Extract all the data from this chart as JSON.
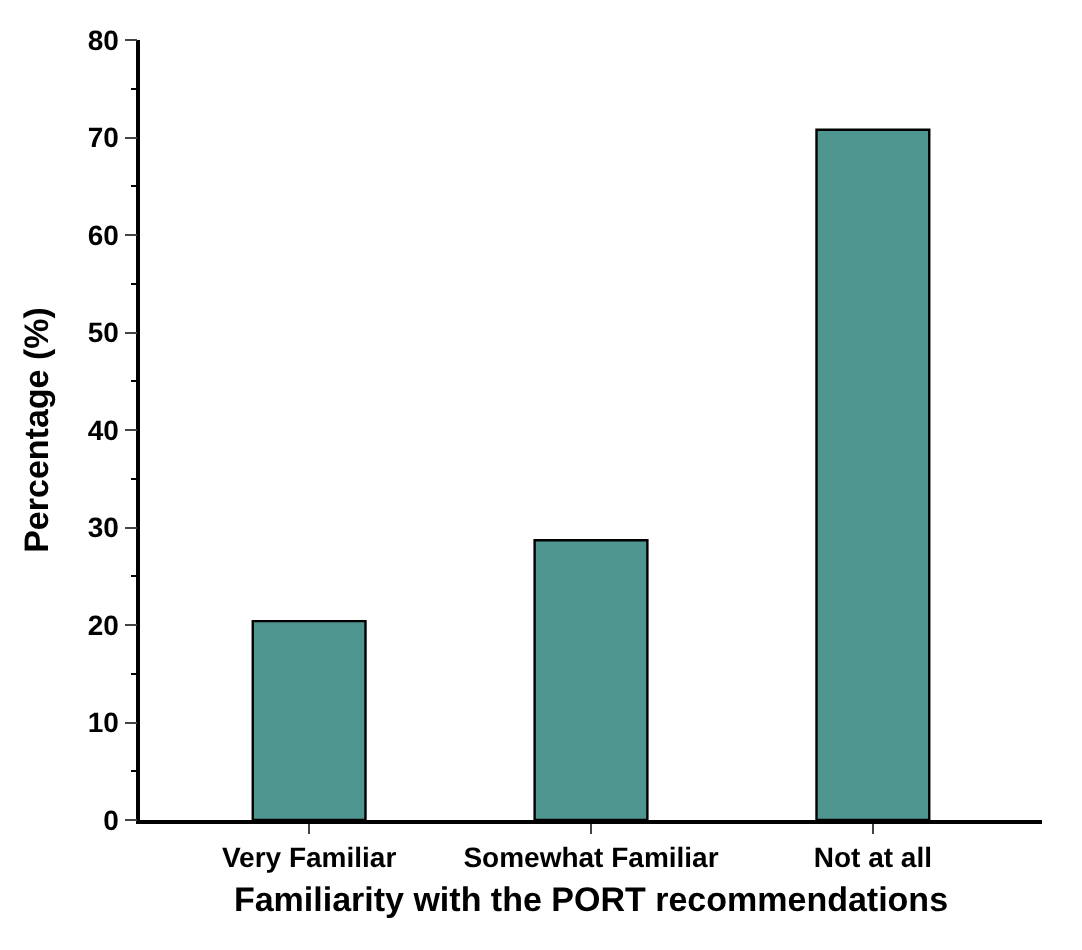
{
  "chart_data": {
    "type": "bar",
    "xlabel": "Familiarity with the PORT recommendations",
    "ylabel": "Percentage (%)",
    "categories": [
      "Very Familiar",
      "Somewhat Familiar",
      "Not at all"
    ],
    "values": [
      20.4,
      28.7,
      70.8
    ],
    "color": "#4f9690",
    "ylim": [
      0,
      80
    ],
    "yticks": [
      0,
      {
        "value": 5,
        "label": null
      },
      10,
      {
        "value": 15,
        "label": null
      },
      20,
      {
        "value": 25,
        "label": null
      },
      30,
      {
        "value": 35,
        "label": null
      },
      40,
      {
        "value": 45,
        "label": null
      },
      50,
      {
        "value": 55,
        "label": null
      },
      60,
      {
        "value": 65,
        "label": null
      },
      70,
      {
        "value": 75,
        "label": null
      },
      80
    ],
    "tick_labels": "xy"
  }
}
